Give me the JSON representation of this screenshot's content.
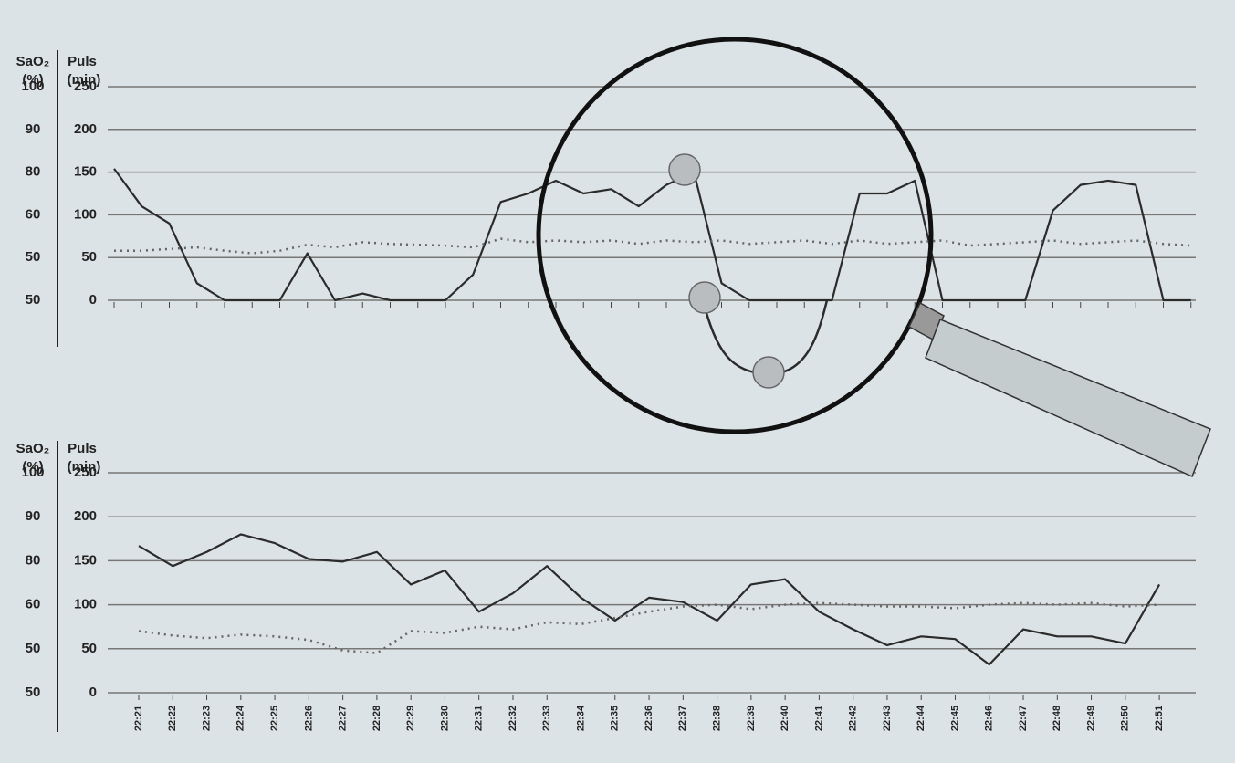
{
  "chart_data": [
    {
      "type": "line",
      "sao2_title": "SaO₂",
      "sao2_unit": "(%)",
      "puls_title": "Puls",
      "puls_unit": "(min)",
      "sao2_ticks": [
        50,
        50,
        60,
        80,
        90,
        100
      ],
      "ylim": [
        0,
        250
      ],
      "yticks": [
        0,
        50,
        100,
        150,
        200,
        250
      ],
      "grid": true,
      "categories": [
        null,
        null,
        null,
        null,
        null,
        null,
        null,
        null,
        null,
        null,
        null,
        null,
        null,
        null,
        null,
        null,
        null,
        null,
        null,
        null,
        null,
        null,
        null,
        null,
        null,
        null,
        null,
        null,
        null,
        null,
        null,
        null,
        null,
        null,
        null,
        null,
        null,
        null,
        null,
        null
      ],
      "series": [
        {
          "color": "#2b2b2b",
          "style": "solid",
          "values": [
            154,
            110,
            90,
            20,
            0,
            0,
            0,
            55,
            0,
            8,
            0,
            0,
            0,
            30,
            115,
            125,
            140,
            125,
            130,
            110,
            135,
            150,
            20,
            0,
            0,
            0,
            0,
            125,
            125,
            140,
            0,
            0,
            0,
            0,
            105,
            135,
            140,
            135,
            0,
            0
          ]
        },
        {
          "color": "#666666",
          "style": "dotted",
          "values": [
            58,
            58,
            60,
            62,
            58,
            55,
            58,
            65,
            62,
            68,
            66,
            65,
            64,
            62,
            72,
            68,
            70,
            68,
            70,
            66,
            70,
            68,
            70,
            66,
            68,
            70,
            66,
            70,
            66,
            68,
            70,
            64,
            66,
            68,
            70,
            66,
            68,
            70,
            66,
            64
          ]
        }
      ]
    },
    {
      "type": "line",
      "sao2_title": "SaO₂",
      "sao2_unit": "(%)",
      "puls_title": "Puls",
      "puls_unit": "(min)",
      "sao2_ticks": [
        50,
        50,
        60,
        80,
        90,
        100
      ],
      "ylim": [
        0,
        250
      ],
      "yticks": [
        0,
        50,
        100,
        150,
        200,
        250
      ],
      "grid": true,
      "categories": [
        "22:21",
        "22:22",
        "22:23",
        "22:24",
        "22:25",
        "22:26",
        "22:27",
        "22:28",
        "22:29",
        "22:30",
        "22:31",
        "22:32",
        "22:33",
        "22:34",
        "22:35",
        "22:36",
        "22:37",
        "22:38",
        "22:39",
        "22:40",
        "22:41",
        "22:42",
        "22:43",
        "22:44",
        "22:45",
        "22:46",
        "22:47",
        "22:48",
        "22:49",
        "22:50",
        "22:51"
      ],
      "series": [
        {
          "color": "#2b2b2b",
          "style": "solid",
          "values": [
            167,
            144,
            160,
            180,
            170,
            152,
            149,
            160,
            123,
            139,
            92,
            113,
            144,
            108,
            82,
            108,
            103,
            82,
            123,
            129,
            92,
            72,
            54,
            64,
            61,
            32,
            72,
            64,
            64,
            56,
            123
          ]
        },
        {
          "color": "#666666",
          "style": "dotted",
          "values": [
            70,
            65,
            62,
            66,
            64,
            60,
            48,
            45,
            70,
            68,
            75,
            72,
            80,
            78,
            85,
            92,
            98,
            100,
            95,
            100,
            102,
            100,
            98,
            98,
            96,
            100,
            102,
            100,
            102,
            98,
            100
          ]
        }
      ]
    }
  ]
}
